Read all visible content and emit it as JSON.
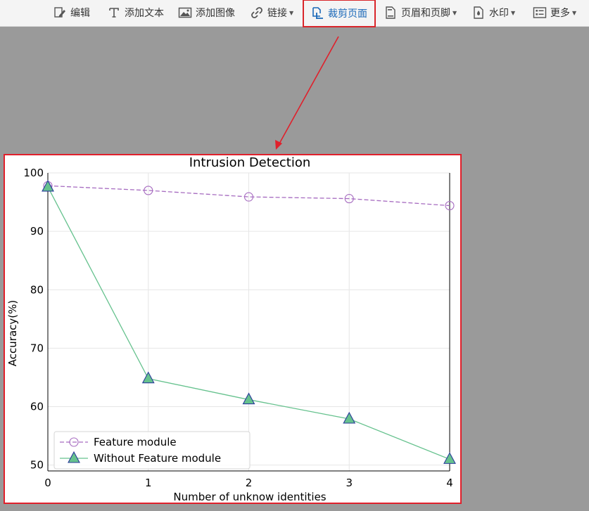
{
  "toolbar": {
    "items": [
      {
        "label": "编辑",
        "icon": "edit-icon"
      },
      {
        "label": "添加文本",
        "icon": "text-icon"
      },
      {
        "label": "添加图像",
        "icon": "image-icon"
      },
      {
        "label": "链接",
        "icon": "link-icon"
      },
      {
        "label": "裁剪页面",
        "icon": "crop-page-icon"
      },
      {
        "label": "页眉和页脚",
        "icon": "header-footer-icon"
      },
      {
        "label": "水印",
        "icon": "watermark-icon"
      },
      {
        "label": "更多",
        "icon": "more-icon"
      }
    ],
    "active_color": "#1a68b8",
    "highlight_color": "#d9262b"
  },
  "chart_data": {
    "type": "line",
    "title": "Intrusion Detection",
    "xlabel": "Number of unknow identities",
    "ylabel": "Accuracy(%)",
    "x": [
      0,
      1,
      2,
      3,
      4
    ],
    "xlim": [
      0,
      4
    ],
    "ylim": [
      49,
      100
    ],
    "xticks": [
      "0",
      "1",
      "2",
      "3",
      "4"
    ],
    "yticks": [
      "50",
      "60",
      "70",
      "80",
      "90",
      "100"
    ],
    "grid": true,
    "legend_position": "lower-left",
    "series": [
      {
        "name": "Feature module",
        "values": [
          97.8,
          97.0,
          95.9,
          95.6,
          94.4
        ],
        "color": "#a66bc0",
        "style": "dashed",
        "marker": "circle-open"
      },
      {
        "name": "Without Feature module",
        "values": [
          97.6,
          64.8,
          61.2,
          57.9,
          51.0
        ],
        "color": "#66c28e",
        "style": "solid",
        "marker": "triangle-filled"
      }
    ]
  }
}
